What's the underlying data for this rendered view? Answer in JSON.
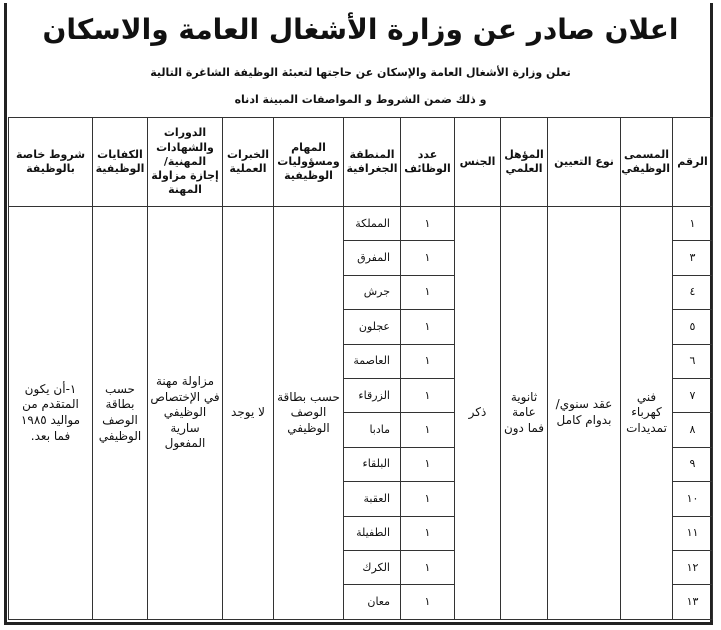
{
  "title": "اعلان صادر عن وزارة الأشغال العامة والاسكان",
  "intro": [
    "تعلن وزارة الأشغال العامة والإسكان عن حاجتها لتعبئة الوظيفة الشاغرة التالية",
    "و ذلك ضمن الشروط و المواصفات المبينة ادناه"
  ],
  "headers": [
    "الرقم",
    "المسمى الوظيفي",
    "نوع التعيين",
    "المؤهل العلمي",
    "الجنس",
    "عدد الوظائف",
    "المنطقة الجغرافية",
    "المهام ومسؤوليات الوظيفية",
    "الخبرات العملية",
    "الدورات والشهادات المهنية/إجازة مزاولة المهنة",
    "الكفايات الوظيفية",
    "شروط خاصة بالوظيفة"
  ],
  "shared": {
    "title": "فني كهرباء تمديدات",
    "appointment": "عقد سنوي/بدوام كامل",
    "qualification": "ثانوية عامة فما دون",
    "gender": "ذكر",
    "tasks": "حسب بطاقة الوصف الوظيفي",
    "experience": "لا يوجد",
    "courses": "مزاولة مهنة في الإختصاص الوظيفي سارية المفعول",
    "competencies": "حسب بطاقة الوصف الوظيفي",
    "conditions": "١-أن يكون المتقدم من مواليد ١٩٨٥ فما بعد."
  },
  "rows": [
    {
      "num": "١",
      "count": "١",
      "region": "المملكة"
    },
    {
      "num": "٣",
      "count": "١",
      "region": "المفرق"
    },
    {
      "num": "٤",
      "count": "١",
      "region": "جرش"
    },
    {
      "num": "٥",
      "count": "١",
      "region": "عجلون"
    },
    {
      "num": "٦",
      "count": "١",
      "region": "العاصمة"
    },
    {
      "num": "٧",
      "count": "١",
      "region": "الزرقاء"
    },
    {
      "num": "٨",
      "count": "١",
      "region": "مادبا"
    },
    {
      "num": "٩",
      "count": "١",
      "region": "البلقاء"
    },
    {
      "num": "١٠",
      "count": "١",
      "region": "العقبة"
    },
    {
      "num": "١١",
      "count": "١",
      "region": "الطفيلة"
    },
    {
      "num": "١٢",
      "count": "١",
      "region": "الكرك"
    },
    {
      "num": "١٣",
      "count": "١",
      "region": "معان"
    }
  ]
}
